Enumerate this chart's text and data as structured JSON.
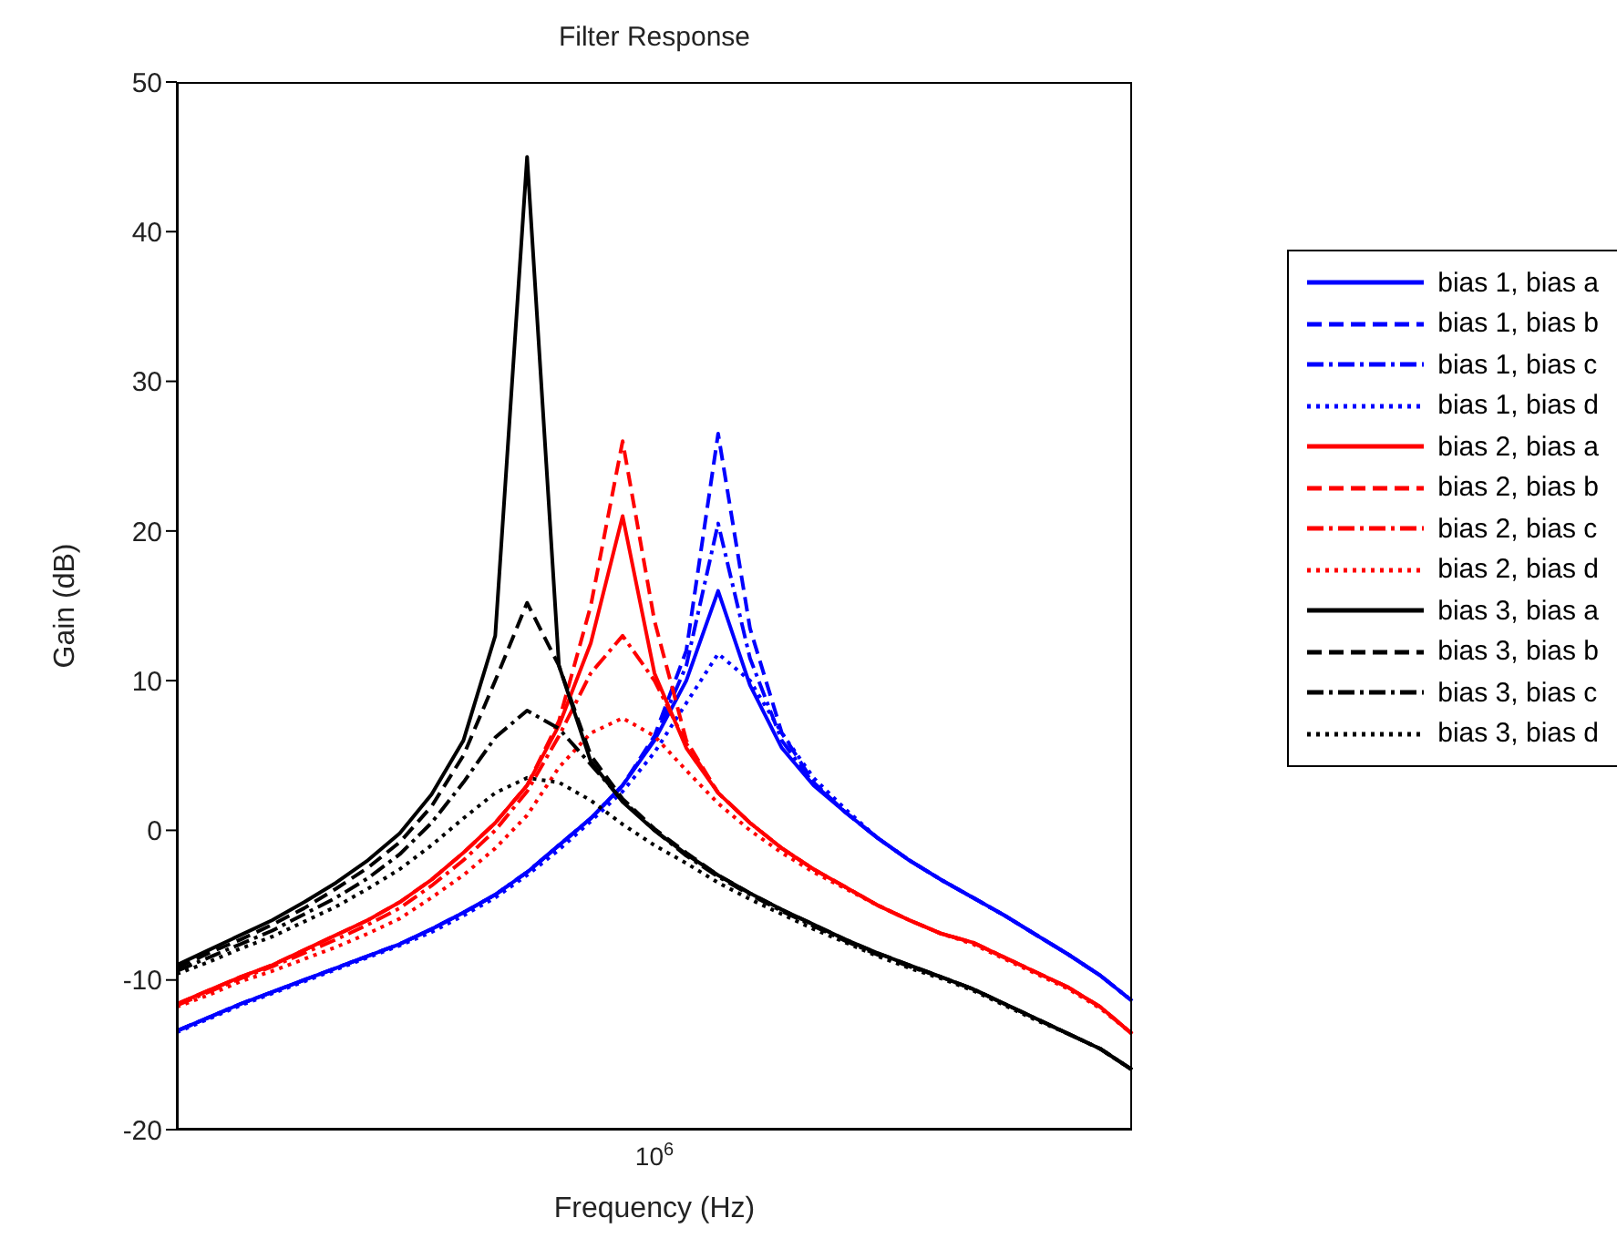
{
  "chart_data": {
    "type": "line",
    "title": "Filter Response",
    "xlabel": "Frequency (Hz)",
    "ylabel": "Gain (dB)",
    "categories": [
      null,
      null,
      null,
      null,
      null,
      null,
      null,
      null,
      null,
      null,
      null,
      null,
      null,
      null,
      null,
      null,
      null,
      null,
      null,
      null,
      null,
      null,
      null,
      null,
      null,
      null,
      null,
      null,
      null,
      null,
      null
    ],
    "series": [
      {
        "name": "bias 1, bias a",
        "color": "#0000ff",
        "line_style": "solid",
        "values": [
          -13.4,
          -12.5,
          -11.6,
          -10.8,
          -10,
          -9.2,
          -8.4,
          -7.6,
          -6.6,
          -5.5,
          -4.3,
          -2.8,
          -1,
          0.8,
          3,
          6,
          10,
          16,
          9.7,
          5.5,
          3,
          1.2,
          -0.5,
          -2,
          -3.3,
          -4.5,
          -5.7,
          -7,
          -8.3,
          -9.7,
          -11.4
        ]
      },
      {
        "name": "bias 1, bias b",
        "color": "#0000ff",
        "line_style": "dashed",
        "values": [
          -13.4,
          -12.5,
          -11.6,
          -10.8,
          -10,
          -9.2,
          -8.4,
          -7.6,
          -6.6,
          -5.5,
          -4.3,
          -2.8,
          -1,
          0.8,
          3,
          6.3,
          12,
          26.5,
          13.5,
          6.5,
          3.2,
          1.2,
          -0.5,
          -2,
          -3.3,
          -4.5,
          -5.7,
          -7,
          -8.3,
          -9.7,
          -11.4
        ]
      },
      {
        "name": "bias 1, bias c",
        "color": "#0000ff",
        "line_style": "dashdot",
        "values": [
          -13.4,
          -12.5,
          -11.6,
          -10.8,
          -10,
          -9.2,
          -8.4,
          -7.6,
          -6.6,
          -5.5,
          -4.3,
          -2.8,
          -1,
          0.8,
          3,
          6.1,
          11,
          20.5,
          11.5,
          6,
          3.1,
          1.2,
          -0.5,
          -2,
          -3.3,
          -4.5,
          -5.7,
          -7,
          -8.3,
          -9.7,
          -11.4
        ]
      },
      {
        "name": "bias 1, bias d",
        "color": "#0000ff",
        "line_style": "dotted",
        "values": [
          -13.5,
          -12.6,
          -11.7,
          -10.9,
          -10.1,
          -9.3,
          -8.5,
          -7.7,
          -6.8,
          -5.7,
          -4.5,
          -3,
          -1.3,
          0.6,
          2.6,
          5.2,
          8.5,
          11.8,
          10,
          6.5,
          3.5,
          1.4,
          -0.5,
          -2,
          -3.3,
          -4.5,
          -5.7,
          -7,
          -8.3,
          -9.7,
          -11.4
        ]
      },
      {
        "name": "bias 2, bias a",
        "color": "#ff0000",
        "line_style": "solid",
        "values": [
          -11.6,
          -10.7,
          -9.8,
          -9,
          -8,
          -7,
          -6,
          -4.8,
          -3.3,
          -1.5,
          0.5,
          3,
          7,
          12.5,
          21,
          10.5,
          5.5,
          2.5,
          0.5,
          -1.2,
          -2.6,
          -3.8,
          -5,
          -6,
          -6.9,
          -7.5,
          -8.5,
          -9.5,
          -10.5,
          -11.8,
          -13.6
        ]
      },
      {
        "name": "bias 2, bias b",
        "color": "#ff0000",
        "line_style": "dashed",
        "values": [
          -11.6,
          -10.7,
          -9.8,
          -9,
          -8,
          -7,
          -6,
          -4.8,
          -3.3,
          -1.5,
          0.5,
          3,
          7.3,
          15,
          26,
          14,
          6,
          2.5,
          0.5,
          -1.2,
          -2.6,
          -3.8,
          -5,
          -6,
          -6.9,
          -7.5,
          -8.5,
          -9.5,
          -10.5,
          -11.8,
          -13.6
        ]
      },
      {
        "name": "bias 2, bias c",
        "color": "#ff0000",
        "line_style": "dashdot",
        "values": [
          -11.7,
          -10.8,
          -9.9,
          -9.1,
          -8.2,
          -7.3,
          -6.3,
          -5.2,
          -3.7,
          -2,
          0,
          2.6,
          6.3,
          10.5,
          13,
          10,
          5.8,
          2.5,
          0.5,
          -1.2,
          -2.6,
          -3.8,
          -5,
          -6,
          -6.9,
          -7.5,
          -8.5,
          -9.5,
          -10.5,
          -11.8,
          -13.6
        ]
      },
      {
        "name": "bias 2, bias d",
        "color": "#ff0000",
        "line_style": "dotted",
        "values": [
          -11.8,
          -11,
          -10.1,
          -9.4,
          -8.6,
          -7.8,
          -6.9,
          -5.9,
          -4.5,
          -3,
          -1.2,
          1,
          4.2,
          6.5,
          7.5,
          6.3,
          4,
          1.8,
          0,
          -1.5,
          -2.8,
          -3.9,
          -5,
          -6,
          -6.9,
          -7.6,
          -8.6,
          -9.6,
          -10.6,
          -11.9,
          -13.6
        ]
      },
      {
        "name": "bias 3, bias a",
        "color": "#000000",
        "line_style": "solid",
        "values": [
          -9,
          -8,
          -7,
          -6,
          -4.8,
          -3.5,
          -2,
          -0.2,
          2.4,
          6,
          13,
          45,
          11,
          4.6,
          1.9,
          0,
          -1.6,
          -3,
          -4.2,
          -5.3,
          -6.3,
          -7.3,
          -8.2,
          -9,
          -9.8,
          -10.6,
          -11.6,
          -12.6,
          -13.6,
          -14.6,
          -16
        ]
      },
      {
        "name": "bias 3, bias b",
        "color": "#000000",
        "line_style": "dashed",
        "values": [
          -9.2,
          -8.2,
          -7.3,
          -6.3,
          -5.2,
          -3.9,
          -2.5,
          -0.8,
          1.6,
          5,
          10,
          15.2,
          11,
          5,
          2.1,
          0.1,
          -1.5,
          -3,
          -4.2,
          -5.3,
          -6.3,
          -7.3,
          -8.2,
          -9,
          -9.8,
          -10.6,
          -11.6,
          -12.6,
          -13.6,
          -14.6,
          -16
        ]
      },
      {
        "name": "bias 3, bias c",
        "color": "#000000",
        "line_style": "dashdot",
        "values": [
          -9.4,
          -8.5,
          -7.6,
          -6.7,
          -5.6,
          -4.5,
          -3.2,
          -1.6,
          0.5,
          3.2,
          6.2,
          8,
          6.8,
          4.4,
          2,
          0,
          -1.7,
          -3.1,
          -4.3,
          -5.4,
          -6.4,
          -7.4,
          -8.3,
          -9.1,
          -9.8,
          -10.6,
          -11.6,
          -12.6,
          -13.6,
          -14.6,
          -16
        ]
      },
      {
        "name": "bias 3, bias d",
        "color": "#000000",
        "line_style": "dotted",
        "values": [
          -9.6,
          -8.8,
          -7.9,
          -7.1,
          -6.1,
          -5.1,
          -3.9,
          -2.6,
          -1,
          0.8,
          2.5,
          3.5,
          3.2,
          2,
          0.4,
          -1,
          -2.2,
          -3.5,
          -4.6,
          -5.6,
          -6.6,
          -7.5,
          -8.4,
          -9.2,
          -9.9,
          -10.7,
          -11.7,
          -12.7,
          -13.6,
          -14.6,
          -16
        ]
      }
    ],
    "ylim": [
      -20,
      50
    ],
    "yticks": [
      -20,
      -10,
      0,
      10,
      20,
      30,
      40,
      50
    ],
    "tick_labels": "y",
    "annotations": [
      "10$^{6}$"
    ],
    "legend": "right",
    "marker": "none"
  }
}
